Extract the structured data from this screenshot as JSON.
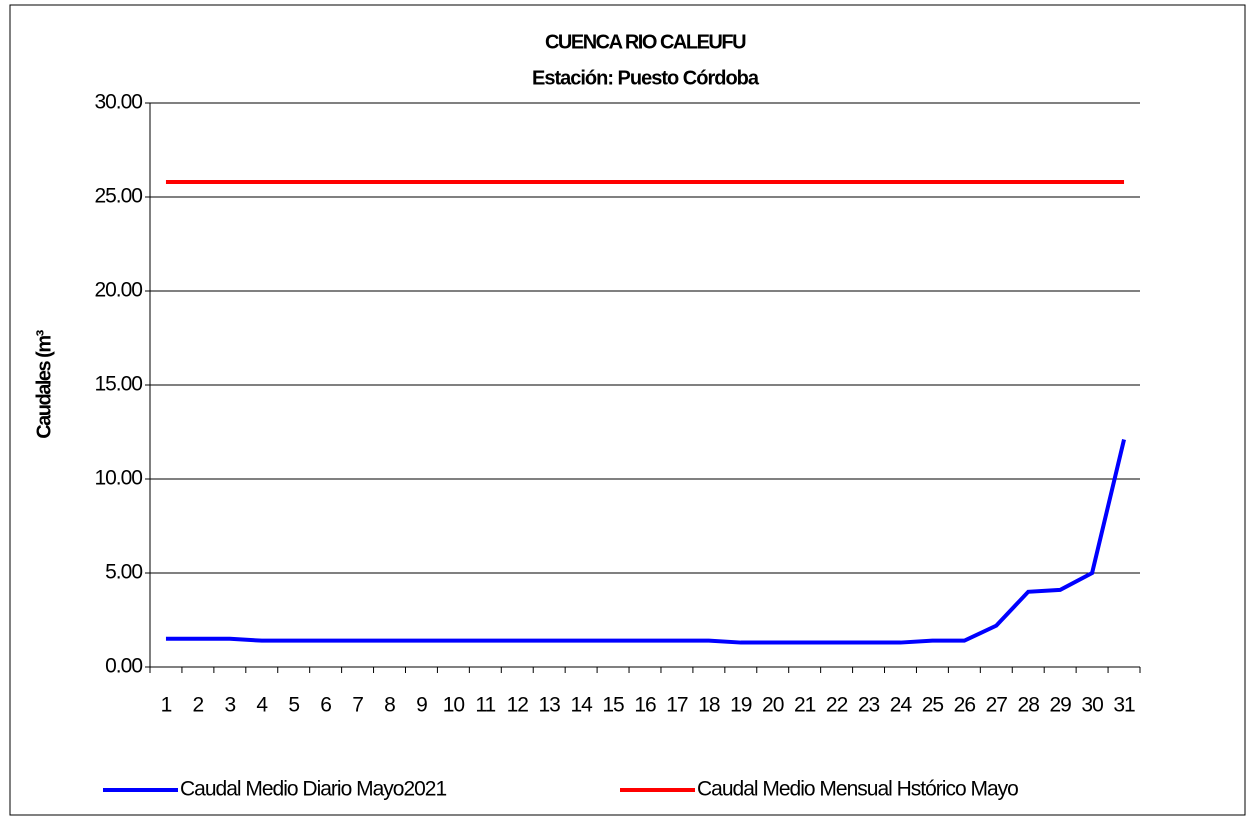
{
  "chart_data": {
    "type": "line",
    "title": "CUENCA RIO CALEUFU",
    "subtitle": "Estación: Puesto Córdoba",
    "y_label": "Caudales (m³",
    "categories": [
      "1",
      "2",
      "3",
      "4",
      "5",
      "6",
      "7",
      "8",
      "9",
      "10",
      "11",
      "12",
      "13",
      "14",
      "15",
      "16",
      "17",
      "18",
      "19",
      "20",
      "21",
      "22",
      "23",
      "24",
      "25",
      "26",
      "27",
      "28",
      "29",
      "30",
      "31"
    ],
    "series": [
      {
        "name": "Caudal Medio Diario Mayo2021",
        "color": "#0000ff",
        "values": [
          1.5,
          1.5,
          1.5,
          1.4,
          1.4,
          1.4,
          1.4,
          1.4,
          1.4,
          1.4,
          1.4,
          1.4,
          1.4,
          1.4,
          1.4,
          1.4,
          1.4,
          1.4,
          1.3,
          1.3,
          1.3,
          1.3,
          1.3,
          1.3,
          1.4,
          1.4,
          2.2,
          4.0,
          4.1,
          5.0,
          12.1
        ]
      },
      {
        "name": "Caudal Medio Mensual Hstórico Mayo",
        "color": "#ff0000",
        "values": [
          25.8,
          25.8,
          25.8,
          25.8,
          25.8,
          25.8,
          25.8,
          25.8,
          25.8,
          25.8,
          25.8,
          25.8,
          25.8,
          25.8,
          25.8,
          25.8,
          25.8,
          25.8,
          25.8,
          25.8,
          25.8,
          25.8,
          25.8,
          25.8,
          25.8,
          25.8,
          25.8,
          25.8,
          25.8,
          25.8,
          25.8
        ]
      }
    ],
    "ylim": [
      0,
      30
    ],
    "yticks": [
      {
        "value": 0,
        "label": "0.00"
      },
      {
        "value": 5,
        "label": "5.00"
      },
      {
        "value": 10,
        "label": "10.00"
      },
      {
        "value": 15,
        "label": "15.00"
      },
      {
        "value": 20,
        "label": "20.00"
      },
      {
        "value": 25,
        "label": "25.00"
      },
      {
        "value": 30,
        "label": "30.00"
      }
    ],
    "grid": true,
    "legend": "bottom"
  }
}
